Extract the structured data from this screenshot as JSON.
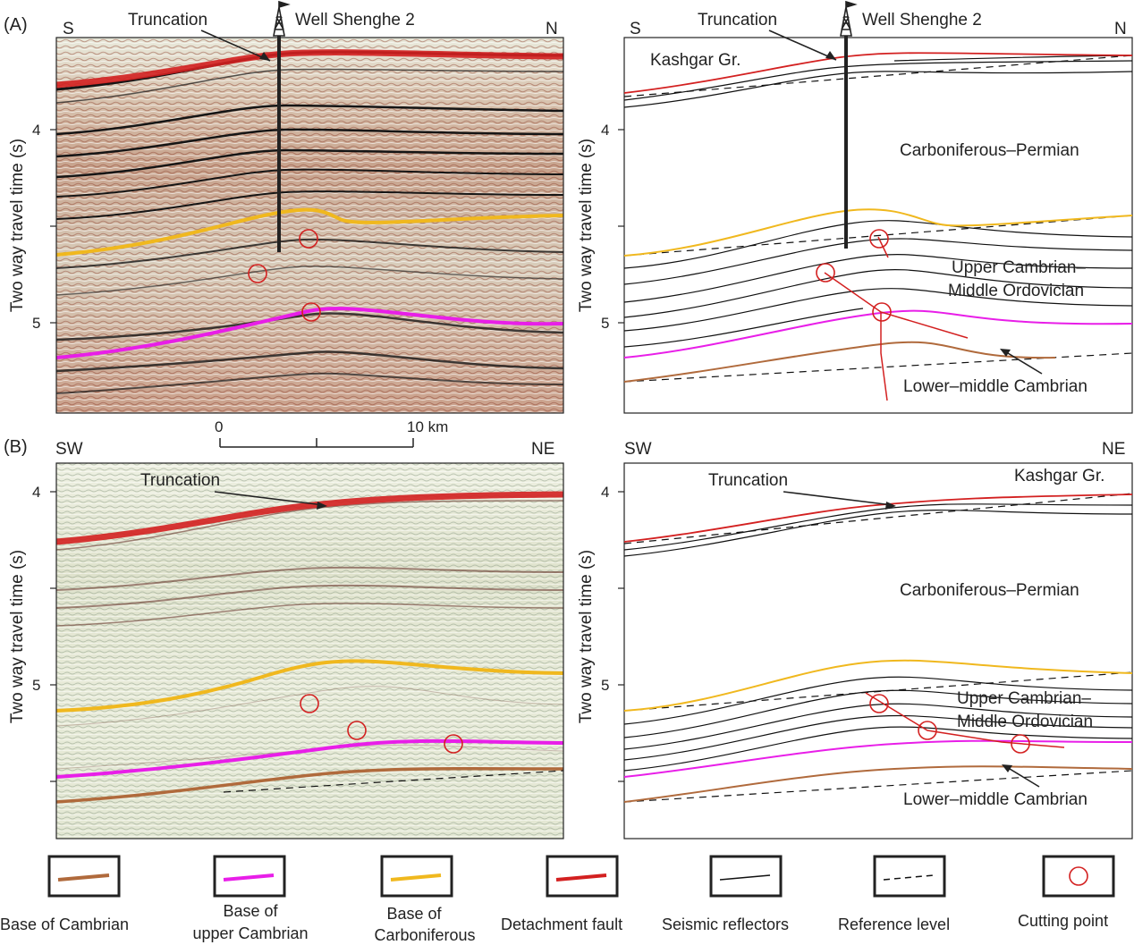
{
  "panel_a": {
    "letter": "(A)",
    "dir_left": "S",
    "dir_right": "N",
    "truncation": "Truncation",
    "well": "Well Shenghe 2",
    "kashgar": "Kashgar Gr.",
    "carb_perm": "Carboniferous–Permian",
    "upper_cambrian_1": "Upper Cambrian–",
    "upper_cambrian_2": "Middle Ordovician",
    "lower_cambrian": "Lower–middle Cambrian",
    "ticks": [
      "4",
      "5"
    ],
    "ylabel": "Two way travel time (s)"
  },
  "scale": {
    "zero": "0",
    "ten": "10 km"
  },
  "panel_b": {
    "letter": "(B)",
    "dir_left": "SW",
    "dir_right": "NE",
    "truncation": "Truncation",
    "kashgar": "Kashgar Gr.",
    "carb_perm": "Carboniferous–Permian",
    "upper_cambrian_1": "Upper Cambrian–",
    "upper_cambrian_2": "Middle Ordovician",
    "lower_cambrian": "Lower–middle Cambrian",
    "ticks": [
      "4",
      "5"
    ],
    "ylabel": "Two way travel time (s)"
  },
  "legend": [
    {
      "line1": "Base of Cambrian",
      "line2": "",
      "icon": "brown-line-icon",
      "color": "#b06a3c"
    },
    {
      "line1": "Base of",
      "line2": "upper Cambrian",
      "icon": "magenta-line-icon",
      "color": "#e81ee8"
    },
    {
      "line1": "Base of",
      "line2": "Carboniferous",
      "icon": "yellow-line-icon",
      "color": "#f0b81e"
    },
    {
      "line1": "Detachment fault",
      "line2": "",
      "icon": "red-line-icon",
      "color": "#d32020"
    },
    {
      "line1": "Seismic reflectors",
      "line2": "",
      "icon": "black-line-icon",
      "color": "#111111"
    },
    {
      "line1": "Reference level",
      "line2": "",
      "icon": "dashed-line-icon",
      "color": "#111111"
    },
    {
      "line1": "Cutting point",
      "line2": "",
      "icon": "circle-icon",
      "color": "#d32020"
    }
  ],
  "colors": {
    "detachment": "#d32020",
    "carboniferous": "#f0b81e",
    "upper_cambrian": "#e81ee8",
    "cambrian": "#b06a3c"
  }
}
